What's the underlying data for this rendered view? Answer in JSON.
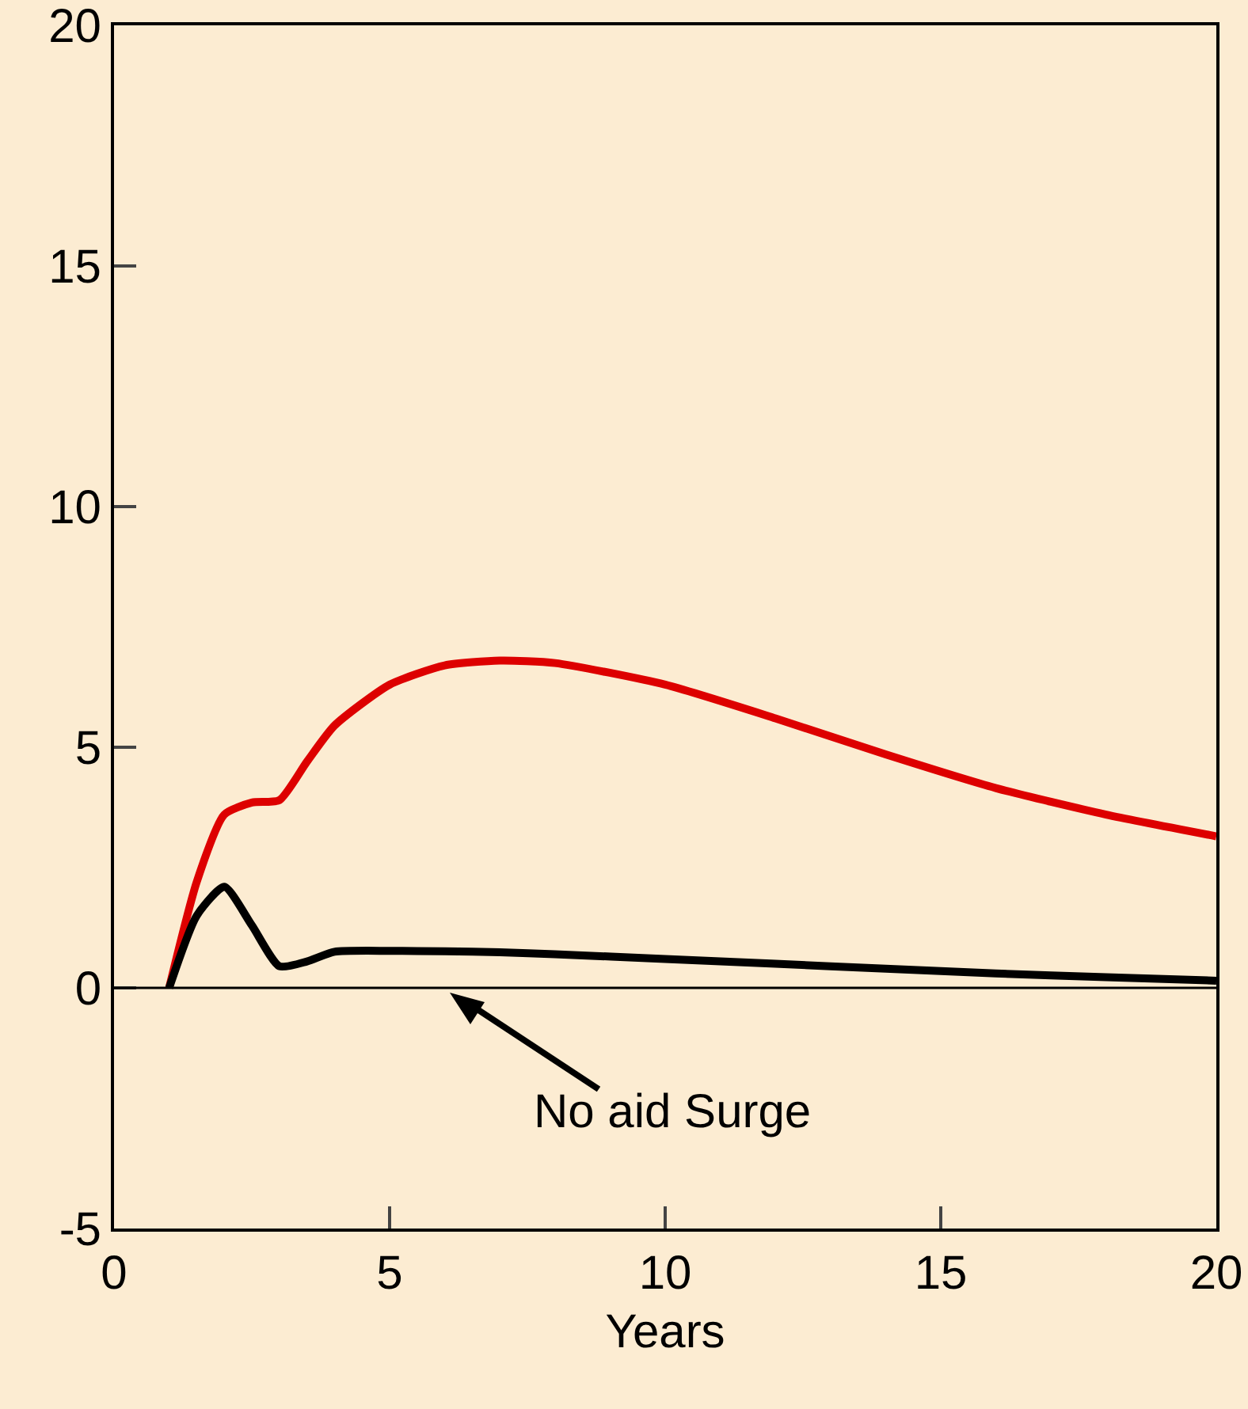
{
  "chart_data": {
    "type": "line",
    "xlabel": "Years",
    "x": [
      1,
      1.5,
      2,
      2.5,
      3,
      3.5,
      4,
      5,
      6,
      7,
      8,
      10,
      12,
      14,
      16,
      18,
      20
    ],
    "series": [
      {
        "color": "#dd0000",
        "values": [
          0,
          2.2,
          3.6,
          3.85,
          3.9,
          4.7,
          5.45,
          6.3,
          6.7,
          6.8,
          6.75,
          6.3,
          5.6,
          4.85,
          4.15,
          3.6,
          3.15
        ]
      },
      {
        "color": "#000000",
        "values": [
          0,
          1.5,
          2.1,
          1.3,
          0.45,
          0.55,
          0.75,
          0.77,
          0.76,
          0.74,
          0.7,
          0.6,
          0.5,
          0.4,
          0.3,
          0.22,
          0.15
        ]
      }
    ],
    "annotations": [
      "No aid Surge"
    ],
    "ref_lines": [
      {
        "axis": "y",
        "value": 0,
        "color": "#000000"
      }
    ],
    "xlim": [
      0,
      20
    ],
    "xticks": [
      0,
      5,
      10,
      15,
      20
    ],
    "ylim": [
      -5,
      20
    ],
    "yticks": [
      -5,
      0,
      5,
      10,
      15,
      20
    ],
    "grid": false,
    "line_style": "solid",
    "marker": "none"
  }
}
